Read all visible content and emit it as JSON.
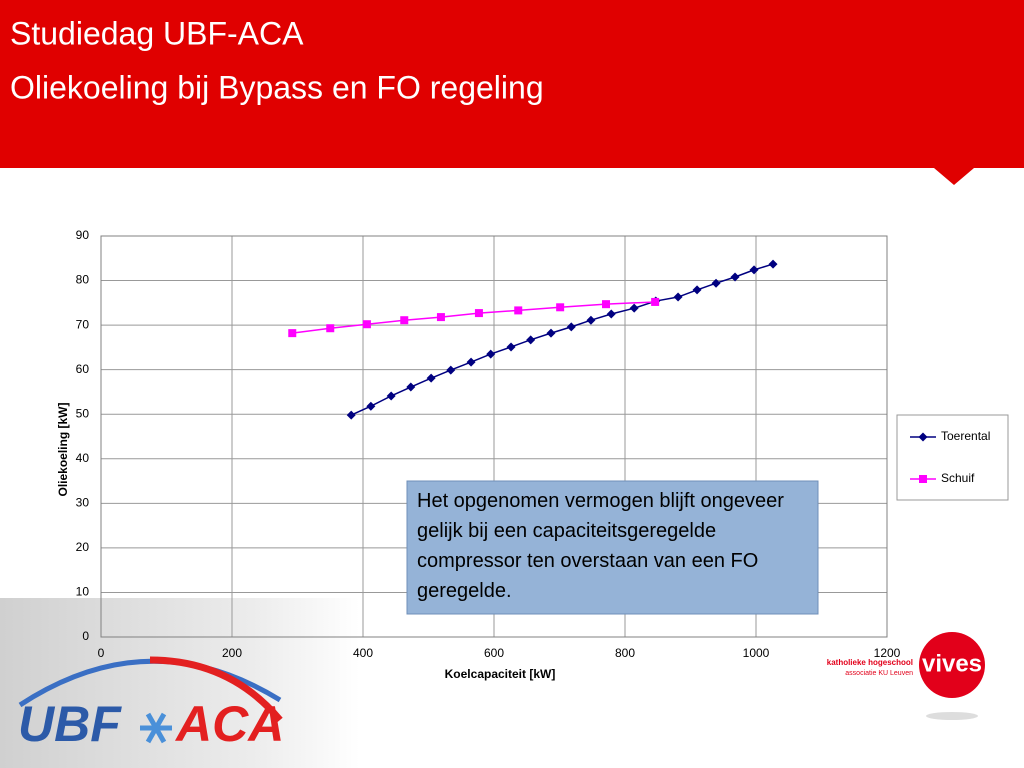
{
  "slide": {
    "title": [
      "Studiedag UBF-ACA",
      "Oliekoeling bij Bypass en FO regeling"
    ]
  },
  "chart_data": {
    "type": "line",
    "x_label": "Koelcapaciteit [kW]",
    "y_label": "Oliekoeling [kW]",
    "xlim": [
      0,
      1200
    ],
    "xticks": [
      0,
      200,
      400,
      600,
      800,
      1000,
      1200
    ],
    "ylim": [
      0,
      90
    ],
    "yticks": [
      0,
      10,
      20,
      30,
      40,
      50,
      60,
      70,
      80,
      90
    ],
    "grid": true,
    "legend": "right",
    "series": [
      {
        "name": "Toerental",
        "color": "#000080",
        "marker": "diamond",
        "x": [
          382,
          412,
          443,
          473,
          504,
          534,
          565,
          595,
          626,
          656,
          687,
          718,
          748,
          779,
          814,
          847,
          881,
          910,
          939,
          968,
          997,
          1026
        ],
        "values": [
          49.8,
          51.8,
          54.1,
          56.1,
          58.1,
          59.9,
          61.7,
          63.5,
          65.1,
          66.7,
          68.2,
          69.6,
          71.1,
          72.5,
          73.8,
          75.4,
          76.3,
          77.9,
          79.4,
          80.8,
          82.4,
          83.7
        ]
      },
      {
        "name": "Schuif",
        "color": "#ff00ff",
        "marker": "square",
        "x": [
          292,
          350,
          406,
          463,
          519,
          577,
          637,
          701,
          771,
          846
        ],
        "values": [
          68.2,
          69.3,
          70.2,
          71.1,
          71.8,
          72.7,
          73.3,
          74.0,
          74.7,
          75.2
        ]
      }
    ],
    "annotation": "Het opgenomen vermogen blijft ongeveer gelijk bij een capaciteitsgeregelde compressor ten overstaan van een FO geregelde."
  },
  "logos": {
    "ubf": "UBF",
    "aca": "ACA",
    "vives": "vives",
    "school": "katholieke hogeschool",
    "association": "associatie KU Leuven"
  }
}
